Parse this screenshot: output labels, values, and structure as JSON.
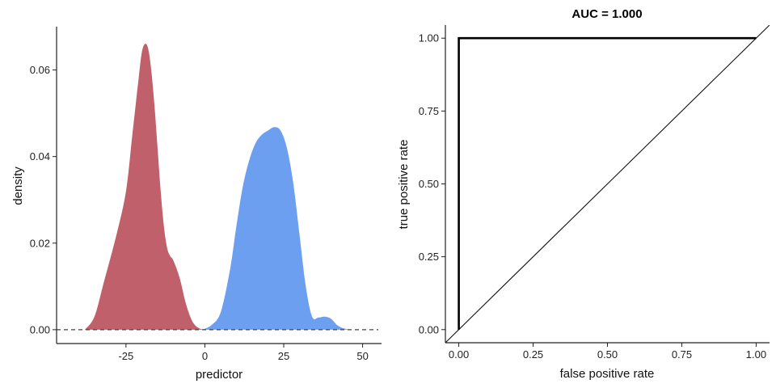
{
  "chart_data": [
    {
      "type": "area",
      "title": "",
      "xlabel": "predictor",
      "ylabel": "density",
      "xlim": [
        -47,
        56
      ],
      "ylim": [
        -0.0032,
        0.07
      ],
      "xticks": [
        -25,
        0,
        25,
        50
      ],
      "xtick_labels": [
        "-25",
        "0",
        "25",
        "50"
      ],
      "yticks": [
        0,
        0.02,
        0.04,
        0.06
      ],
      "ytick_labels": [
        "0.00",
        "0.02",
        "0.04",
        "0.06"
      ],
      "grid": false,
      "reference_line": {
        "y": 0,
        "style": "dashed",
        "x_range": [
          -47,
          55
        ]
      },
      "series": [
        {
          "color": "#c0606b",
          "x": [
            -38,
            -35,
            -32,
            -28,
            -25,
            -23,
            -21,
            -20,
            -19,
            -18,
            -17,
            -16,
            -15,
            -14,
            -13,
            -12,
            -11,
            -10,
            -8,
            -6,
            -4,
            -2,
            0
          ],
          "y": [
            0,
            0.003,
            0.011,
            0.022,
            0.032,
            0.045,
            0.058,
            0.064,
            0.066,
            0.065,
            0.06,
            0.052,
            0.042,
            0.032,
            0.024,
            0.019,
            0.017,
            0.016,
            0.012,
            0.006,
            0.002,
            0.0004,
            0
          ]
        },
        {
          "color": "#6c9ff0",
          "x": [
            -1,
            2,
            5,
            8,
            10,
            12,
            14,
            16,
            18,
            20,
            22,
            24,
            26,
            28,
            30,
            32,
            34,
            36,
            38,
            40,
            42,
            44,
            46
          ],
          "y": [
            0,
            0.001,
            0.004,
            0.014,
            0.024,
            0.033,
            0.039,
            0.043,
            0.045,
            0.046,
            0.0468,
            0.046,
            0.042,
            0.034,
            0.022,
            0.01,
            0.003,
            0.0028,
            0.003,
            0.0025,
            0.001,
            0.0003,
            0
          ]
        }
      ]
    },
    {
      "type": "line",
      "title": "AUC = 1.000",
      "xlabel": "false positive rate",
      "ylabel": "true positive rate",
      "xlim": [
        -0.045,
        1.045
      ],
      "ylim": [
        -0.045,
        1.045
      ],
      "xticks": [
        0,
        0.25,
        0.5,
        0.75,
        1
      ],
      "xtick_labels": [
        "0.00",
        "0.25",
        "0.50",
        "0.75",
        "1.00"
      ],
      "yticks": [
        0,
        0.25,
        0.5,
        0.75,
        1
      ],
      "ytick_labels": [
        "0.00",
        "0.25",
        "0.50",
        "0.75",
        "1.00"
      ],
      "grid": false,
      "series": [
        {
          "style": "roc",
          "x": [
            0,
            0,
            1
          ],
          "y": [
            0,
            1,
            1
          ]
        },
        {
          "style": "diagonal",
          "x": [
            -0.045,
            1.045
          ],
          "y": [
            -0.045,
            1.045
          ]
        }
      ]
    }
  ]
}
